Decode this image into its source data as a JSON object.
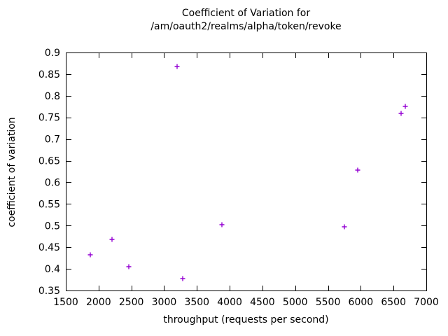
{
  "page": {
    "background": "#ffffff",
    "axis_color": "#000000",
    "text_color": "#000000"
  },
  "chart_data": {
    "type": "scatter",
    "title_line1": "Coefficient of Variation for",
    "title_line2": "/am/oauth2/realms/alpha/token/revoke",
    "xlabel": "throughput (requests per second)",
    "ylabel": "coefficient of variation",
    "xlim": [
      1500,
      7000
    ],
    "ylim": [
      0.35,
      0.9
    ],
    "xticks": [
      1500,
      2000,
      2500,
      3000,
      3500,
      4000,
      4500,
      5000,
      5500,
      6000,
      6500,
      7000
    ],
    "yticks": [
      0.35,
      0.4,
      0.45,
      0.5,
      0.55,
      0.6,
      0.65,
      0.7,
      0.75,
      0.8,
      0.85,
      0.9
    ],
    "ytick_labels": [
      "0.35",
      "0.4",
      "0.45",
      "0.5",
      "0.55",
      "0.6",
      "0.65",
      "0.7",
      "0.75",
      "0.8",
      "0.85",
      "0.9"
    ],
    "grid": false,
    "legend": "none",
    "marker": "plus",
    "marker_color": "#9400d3",
    "series": [
      {
        "name": "coefficient of variation",
        "points": [
          [
            1870,
            0.432
          ],
          [
            2200,
            0.468
          ],
          [
            2460,
            0.405
          ],
          [
            3200,
            0.867
          ],
          [
            3280,
            0.378
          ],
          [
            3880,
            0.502
          ],
          [
            5750,
            0.498
          ],
          [
            5950,
            0.628
          ],
          [
            6620,
            0.76
          ],
          [
            6680,
            0.776
          ]
        ]
      }
    ]
  }
}
